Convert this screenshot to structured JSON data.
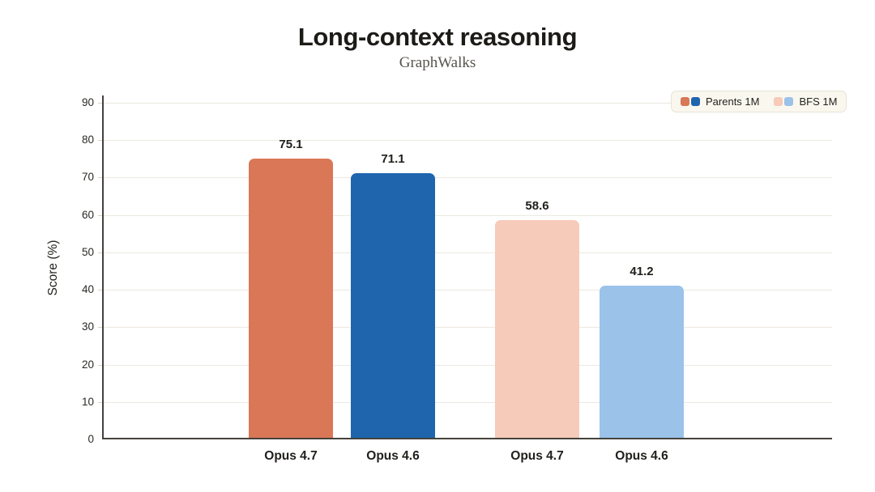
{
  "header": {
    "title": "Long-context reasoning",
    "subtitle": "GraphWalks"
  },
  "chart_data": {
    "type": "bar",
    "title": "Long-context reasoning",
    "subtitle": "GraphWalks",
    "xlabel": "",
    "ylabel": "Score (%)",
    "ylim": [
      0,
      90
    ],
    "ytick_interval": 10,
    "ytick_labels": [
      "0",
      "10",
      "20",
      "30",
      "40",
      "50",
      "60",
      "70",
      "80",
      "90"
    ],
    "grid": true,
    "legend_position": "top-right",
    "categories": [
      "Opus 4.7",
      "Opus 4.6",
      "Opus 4.7",
      "Opus 4.6"
    ],
    "bars": [
      {
        "category": "Opus 4.7",
        "series": "Parents 1M",
        "value": 75.1,
        "label": "75.1",
        "color": "#d97757"
      },
      {
        "category": "Opus 4.6",
        "series": "Parents 1M",
        "value": 71.1,
        "label": "71.1",
        "color": "#1e65ae"
      },
      {
        "category": "Opus 4.7",
        "series": "BFS 1M",
        "value": 58.6,
        "label": "58.6",
        "color": "#f6cbb9"
      },
      {
        "category": "Opus 4.6",
        "series": "BFS 1M",
        "value": 41.2,
        "label": "41.2",
        "color": "#9bc2e9"
      }
    ],
    "legend": [
      {
        "label": "Parents 1M",
        "colors": [
          "#d97757",
          "#1e65ae"
        ]
      },
      {
        "label": "BFS 1M",
        "colors": [
          "#f6cbb9",
          "#9bc2e9"
        ]
      }
    ]
  },
  "colors": {
    "background": "#ffffff",
    "axis": "#45423c",
    "grid": "#ece9e0",
    "legend_background": "#faf7ef",
    "legend_border": "#e7e3d9",
    "title_text": "#1c1b17",
    "subtitle_text": "#57544d"
  }
}
